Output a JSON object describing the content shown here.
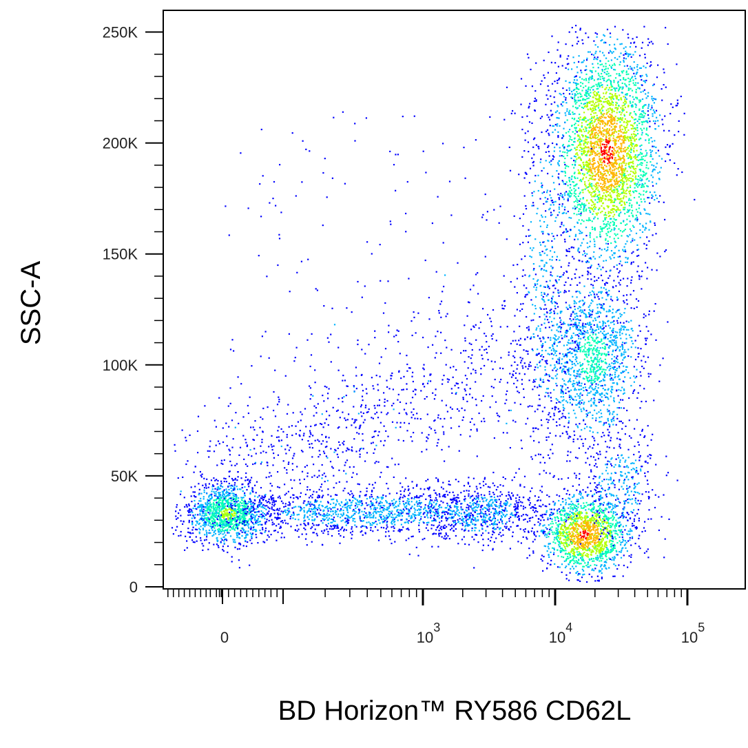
{
  "chart_data": {
    "type": "scatter",
    "subtype": "flow-cytometry pseudocolor density dot plot",
    "title": "",
    "xlabel": "BD Horizon™ RY586 CD62L",
    "ylabel": "SSC-A",
    "x_scale": "biexponential (linear near 0, log above ~10^2)",
    "y_scale": "linear",
    "ylim": [
      0,
      262144
    ],
    "xlim_labels": [
      "0",
      "10^5"
    ],
    "grid": false,
    "legend": "none",
    "y_ticks": [
      {
        "value": 0,
        "label": "0"
      },
      {
        "value": 50000,
        "label": "50K"
      },
      {
        "value": 100000,
        "label": "100K"
      },
      {
        "value": 150000,
        "label": "150K"
      },
      {
        "value": 200000,
        "label": "200K"
      },
      {
        "value": 250000,
        "label": "250K"
      }
    ],
    "x_ticks": [
      {
        "value": 0,
        "label": "0"
      },
      {
        "value": 1000,
        "label": "10",
        "exponent": "3"
      },
      {
        "value": 10000,
        "label": "10",
        "exponent": "4"
      },
      {
        "value": 100000,
        "label": "10",
        "exponent": "5"
      }
    ],
    "density_colors": [
      "#0000ff",
      "#00b4ff",
      "#00ffb4",
      "#b4ff00",
      "#ffb400",
      "#ff0000"
    ],
    "populations": [
      {
        "name": "CD62L-negative low-SSC",
        "x_center": 15,
        "y_center": 34000,
        "relative_density": "high"
      },
      {
        "name": "CD62L-intermediate bridge",
        "x_center": 1000,
        "y_center": 35000,
        "relative_density": "low"
      },
      {
        "name": "CD62L-high low-SSC",
        "x_center": 16000,
        "y_center": 22000,
        "relative_density": "very high"
      },
      {
        "name": "CD62L-high mid-SSC",
        "x_center": 18000,
        "y_center": 100000,
        "relative_density": "medium"
      },
      {
        "name": "CD62L-high high-SSC",
        "x_center": 22000,
        "y_center": 190000,
        "relative_density": "very high"
      },
      {
        "name": "diagonal scatter",
        "x_center": 300,
        "y_center": 70000,
        "relative_density": "sparse"
      }
    ]
  }
}
